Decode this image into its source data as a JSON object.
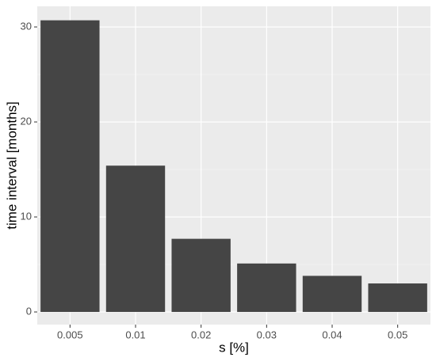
{
  "chart_data": {
    "type": "bar",
    "x_label": "s [%]",
    "y_label": "time interval [months]",
    "categories": [
      "0.005",
      "0.01",
      "0.02",
      "0.03",
      "0.04",
      "0.05"
    ],
    "values": [
      30.7,
      15.4,
      7.7,
      5.1,
      3.8,
      3.0
    ],
    "color": "#454545",
    "ylim": [
      -1.33,
      32.17
    ],
    "yticks": [
      0,
      10,
      20,
      30
    ],
    "y_minor_ticks": [
      5,
      15,
      25
    ],
    "grid": true
  }
}
